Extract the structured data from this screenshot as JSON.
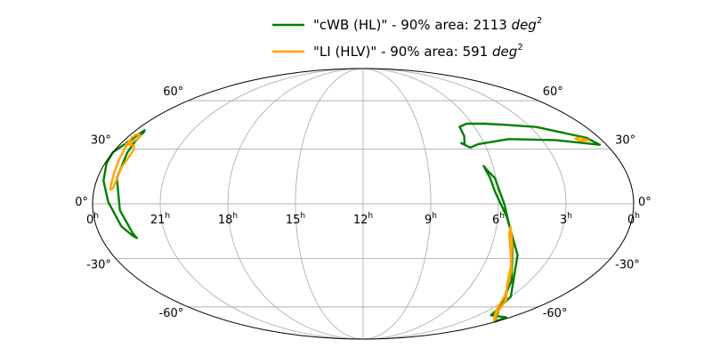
{
  "chart_data": {
    "type": "line",
    "projection": "mollweide",
    "grid": true,
    "legend_placement": "top-center",
    "x_tick_labels": [
      {
        "base": "0",
        "sup": "h"
      },
      {
        "base": "21",
        "sup": "h"
      },
      {
        "base": "18",
        "sup": "h"
      },
      {
        "base": "15",
        "sup": "h"
      },
      {
        "base": "12",
        "sup": "h"
      },
      {
        "base": "9",
        "sup": "h"
      },
      {
        "base": "6",
        "sup": "h"
      },
      {
        "base": "3",
        "sup": "h"
      },
      {
        "base": "0",
        "sup": "h"
      }
    ],
    "y_tick_labels": [
      "60°",
      "30°",
      "0°",
      "-30°",
      "-60°"
    ],
    "series": [
      {
        "name": "\"cWB (HL)\" - 90% area: 2113 deg²",
        "legend_prefix": "\"cWB (HL)\" - 90% area: 2113 ",
        "legend_math": "deg",
        "legend_sup": "2",
        "color": "#008000",
        "contours": [
          [
            [
              -175.0,
              35.4
            ],
            [
              -174.3,
              38.0
            ],
            [
              -173.3,
              41.1
            ],
            [
              -172.1,
              40.0
            ],
            [
              -171.0,
              34.6
            ],
            [
              -169.5,
              28.0
            ],
            [
              -166.9,
              14.0
            ],
            [
              -162.0,
              -3.5
            ],
            [
              -157.0,
              -16.0
            ],
            [
              -155.6,
              -18.6
            ],
            [
              -157.9,
              -17.2
            ],
            [
              -163.1,
              -12.2
            ],
            [
              -169.6,
              1.0
            ],
            [
              -175.3,
              12.5
            ],
            [
              -178.9,
              22.0
            ],
            [
              -180.0,
              28.2
            ],
            [
              -177.6,
              31.5
            ],
            [
              -175.0,
              35.4
            ]
          ],
          [
            [
              73.0,
              33.4
            ],
            [
              75.5,
              33.3
            ],
            [
              77.7,
              37.6
            ],
            [
              78.0,
              43.1
            ],
            [
              85.4,
              45.0
            ],
            [
              100.0,
              45.0
            ],
            [
              115.0,
              44.4
            ],
            [
              140.0,
              43.0
            ],
            [
              170.0,
              36.6
            ],
            [
              175.0,
              32.5
            ],
            [
              145.0,
              35.2
            ],
            [
              110.0,
              35.8
            ],
            [
              85.0,
              32.8
            ],
            [
              78.4,
              30.9
            ],
            [
              73.0,
              33.4
            ]
          ],
          [
            [
              86.0,
              14.2
            ],
            [
              83.5,
              20.6
            ],
            [
              85.4,
              18.0
            ],
            [
              89.3,
              13.9
            ],
            [
              94.0,
              -0.3
            ],
            [
              103.5,
              -20.0
            ],
            [
              120.0,
              -43.0
            ],
            [
              148.0,
              -63.0
            ],
            [
              178.5,
              -71.0
            ],
            [
              175.0,
              -67.6
            ],
            [
              150.0,
              -66.0
            ],
            [
              135.0,
              -53.0
            ],
            [
              111.0,
              -28.0
            ],
            [
              96.0,
              -7.0
            ],
            [
              88.2,
              6.3
            ],
            [
              86.0,
              14.2
            ]
          ]
        ]
      },
      {
        "name": "\"LI (HLV)\" - 90% area: 591 deg²",
        "legend_prefix": "\"LI (HLV)\" - 90% area: 591 ",
        "legend_math": "deg",
        "legend_sup": "2",
        "color": "#ffa500",
        "contours": [
          [
            [
              -175.9,
              32.9
            ],
            [
              -172.6,
              33.6
            ],
            [
              -171.4,
              35.8
            ],
            [
              -171.5,
              38.0
            ],
            [
              -173.4,
              38.5
            ],
            [
              -175.8,
              38.3
            ],
            [
              -176.6,
              36.7
            ],
            [
              -173.6,
              29.9
            ],
            [
              -171.9,
              24.5
            ],
            [
              -170.2,
              17.0
            ],
            [
              -169.4,
              8.7
            ],
            [
              -168.9,
              7.6
            ],
            [
              -167.4,
              8.6
            ],
            [
              -166.9,
              19.6
            ],
            [
              -166.5,
              30.0
            ],
            [
              -168.9,
              32.0
            ],
            [
              -175.9,
              32.9
            ]
          ],
          [
            [
              163.5,
              34.8
            ],
            [
              161.0,
              36.1
            ],
            [
              165.0,
              36.5
            ],
            [
              170.0,
              35.0
            ],
            [
              163.5,
              34.8
            ]
          ],
          [
            [
              99.5,
              -12.5
            ],
            [
              99.7,
              -16.5
            ],
            [
              105.0,
              -26.3
            ],
            [
              113.5,
              -37.0
            ],
            [
              128.0,
              -52.0
            ],
            [
              145.0,
              -63.0
            ],
            [
              176.0,
              -70.8
            ],
            [
              170.0,
              -69.4
            ],
            [
              150.0,
              -64.0
            ],
            [
              135.0,
              -55.0
            ],
            [
              120.0,
              -46.0
            ],
            [
              110.0,
              -33.0
            ],
            [
              104.0,
              -22.0
            ],
            [
              99.5,
              -12.5
            ]
          ]
        ]
      }
    ]
  }
}
